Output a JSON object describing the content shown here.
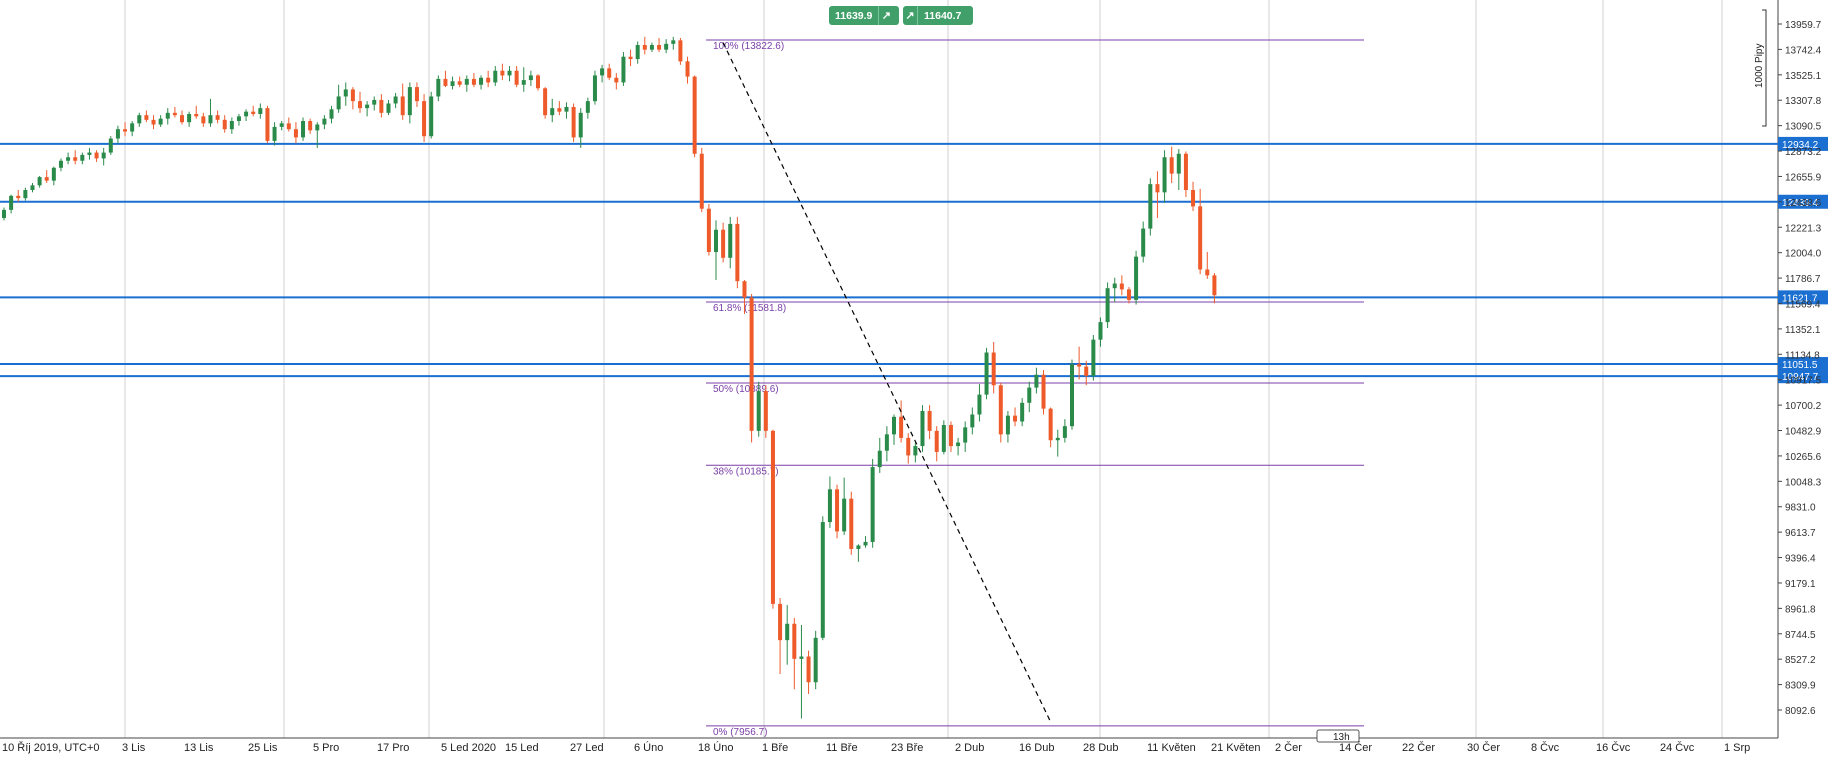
{
  "colors": {
    "bull": "#2a8a4a",
    "bear": "#ee5a2a",
    "grid": "#d0d0d0",
    "sr_line": "#1a6fd1",
    "fib": "#7a3fa8",
    "trade_chip": "#41a06a",
    "trend": "#000000"
  },
  "trade_buttons": {
    "sell_price": "11639.9",
    "sell_icon": "arrow-up-right-icon",
    "buy_price": "11640.7",
    "buy_icon": "arrow-up-right-icon"
  },
  "scale_bracket_label": "1000 Pipy",
  "time_counter": "13h",
  "chart_data": {
    "type": "candlestick",
    "timeframe": "weekly-ish daily",
    "y_axis_ticks": [
      13959.7,
      13742.4,
      13525.1,
      13307.8,
      13090.5,
      12873.2,
      12655.9,
      12438.6,
      12221.3,
      12004.0,
      11786.7,
      11569.4,
      11352.1,
      11134.8,
      10917.5,
      10700.2,
      10482.9,
      10265.6,
      10048.3,
      9831.0,
      9613.7,
      9396.4,
      9179.1,
      8961.8,
      8744.5,
      8527.2,
      8309.9,
      8092.6
    ],
    "x_axis_labels": [
      "10 Říj 2019, UTC+0",
      "3 Lis",
      "13 Lis",
      "25 Lis",
      "5 Pro",
      "17 Pro",
      "5 Led 2020",
      "15 Led",
      "27 Led",
      "6 Úno",
      "18 Úno",
      "1 Bře",
      "11 Bře",
      "23 Bře",
      "2 Dub",
      "16 Dub",
      "28 Dub",
      "11 Květen",
      "21 Květen",
      "2 Čer",
      "14 Čer",
      "22 Čer",
      "30 Čer",
      "8 Čvc",
      "16 Čvc",
      "24 Čvc",
      "1 Srp"
    ],
    "horizontal_lines": [
      {
        "label": "12934.2",
        "value": 12934.2,
        "highlight": true
      },
      {
        "label": "12439.4",
        "value": 12439.4,
        "highlight": true
      },
      {
        "label": "11621.7",
        "value": 11621.7,
        "highlight": true
      },
      {
        "label": "11051.5",
        "value": 11051.5,
        "highlight": true
      },
      {
        "label": "10947.7",
        "value": 10947.7,
        "highlight": true
      }
    ],
    "fibonacci": [
      {
        "label": "100% (13822.6)",
        "value": 13822.6
      },
      {
        "label": "61.8% (11581.8)",
        "value": 11581.8
      },
      {
        "label": "50% (10889.6)",
        "value": 10889.6
      },
      {
        "label": "38% (10185.7)",
        "value": 10185.7
      },
      {
        "label": "0% (7956.7)",
        "value": 7956.7
      }
    ],
    "trendline": {
      "from": {
        "x_index": 101,
        "y": 13800
      },
      "to": {
        "x_index": 147,
        "y": 7990
      }
    },
    "candles": [
      [
        12300,
        12390,
        12280,
        12370
      ],
      [
        12370,
        12500,
        12340,
        12490
      ],
      [
        12490,
        12540,
        12440,
        12470
      ],
      [
        12470,
        12560,
        12450,
        12540
      ],
      [
        12540,
        12600,
        12520,
        12580
      ],
      [
        12580,
        12660,
        12560,
        12650
      ],
      [
        12650,
        12710,
        12600,
        12620
      ],
      [
        12620,
        12740,
        12580,
        12730
      ],
      [
        12730,
        12810,
        12700,
        12790
      ],
      [
        12790,
        12860,
        12760,
        12820
      ],
      [
        12820,
        12880,
        12760,
        12790
      ],
      [
        12790,
        12860,
        12760,
        12840
      ],
      [
        12840,
        12900,
        12800,
        12860
      ],
      [
        12860,
        12880,
        12780,
        12810
      ],
      [
        12810,
        12900,
        12750,
        12860
      ],
      [
        12860,
        13000,
        12840,
        12980
      ],
      [
        12980,
        13090,
        12940,
        13060
      ],
      [
        13060,
        13120,
        13000,
        13040
      ],
      [
        13040,
        13130,
        13000,
        13110
      ],
      [
        13110,
        13200,
        13080,
        13180
      ],
      [
        13180,
        13220,
        13120,
        13140
      ],
      [
        13140,
        13180,
        13060,
        13100
      ],
      [
        13100,
        13180,
        13080,
        13150
      ],
      [
        13150,
        13240,
        13100,
        13200
      ],
      [
        13200,
        13250,
        13160,
        13180
      ],
      [
        13180,
        13220,
        13100,
        13120
      ],
      [
        13120,
        13210,
        13080,
        13190
      ],
      [
        13190,
        13260,
        13150,
        13170
      ],
      [
        13170,
        13200,
        13080,
        13110
      ],
      [
        13110,
        13320,
        13080,
        13180
      ],
      [
        13180,
        13220,
        13110,
        13140
      ],
      [
        13140,
        13180,
        13030,
        13060
      ],
      [
        13060,
        13160,
        13020,
        13130
      ],
      [
        13130,
        13190,
        13090,
        13170
      ],
      [
        13170,
        13230,
        13130,
        13210
      ],
      [
        13210,
        13260,
        13170,
        13190
      ],
      [
        13190,
        13280,
        13150,
        13240
      ],
      [
        13240,
        13260,
        12940,
        12960
      ],
      [
        12960,
        13120,
        12920,
        13080
      ],
      [
        13080,
        13130,
        13050,
        13110
      ],
      [
        13110,
        13160,
        13040,
        13060
      ],
      [
        13060,
        13120,
        12940,
        12990
      ],
      [
        12990,
        13160,
        12960,
        13130
      ],
      [
        13130,
        13150,
        13020,
        13050
      ],
      [
        13050,
        13120,
        12900,
        13100
      ],
      [
        13100,
        13180,
        13060,
        13150
      ],
      [
        13150,
        13260,
        13110,
        13230
      ],
      [
        13230,
        13440,
        13200,
        13340
      ],
      [
        13340,
        13460,
        13260,
        13400
      ],
      [
        13400,
        13420,
        13230,
        13300
      ],
      [
        13300,
        13380,
        13200,
        13240
      ],
      [
        13240,
        13300,
        13170,
        13270
      ],
      [
        13270,
        13340,
        13220,
        13310
      ],
      [
        13310,
        13360,
        13160,
        13200
      ],
      [
        13200,
        13310,
        13180,
        13280
      ],
      [
        13280,
        13370,
        13240,
        13340
      ],
      [
        13340,
        13450,
        13140,
        13180
      ],
      [
        13180,
        13460,
        13110,
        13420
      ],
      [
        13420,
        13460,
        13250,
        13300
      ],
      [
        13300,
        13360,
        12950,
        13000
      ],
      [
        13000,
        13380,
        12980,
        13340
      ],
      [
        13340,
        13520,
        13300,
        13490
      ],
      [
        13490,
        13560,
        13420,
        13430
      ],
      [
        13430,
        13510,
        13400,
        13470
      ],
      [
        13470,
        13510,
        13420,
        13440
      ],
      [
        13440,
        13520,
        13380,
        13490
      ],
      [
        13490,
        13540,
        13420,
        13440
      ],
      [
        13440,
        13520,
        13400,
        13500
      ],
      [
        13500,
        13560,
        13420,
        13460
      ],
      [
        13460,
        13600,
        13430,
        13560
      ],
      [
        13560,
        13620,
        13480,
        13520
      ],
      [
        13520,
        13600,
        13470,
        13560
      ],
      [
        13560,
        13600,
        13420,
        13440
      ],
      [
        13440,
        13590,
        13380,
        13480
      ],
      [
        13480,
        13560,
        13430,
        13520
      ],
      [
        13520,
        13530,
        13390,
        13410
      ],
      [
        13410,
        13420,
        13150,
        13180
      ],
      [
        13180,
        13320,
        13120,
        13240
      ],
      [
        13240,
        13300,
        13180,
        13210
      ],
      [
        13210,
        13290,
        13150,
        13250
      ],
      [
        13250,
        13280,
        12950,
        12990
      ],
      [
        12990,
        13240,
        12900,
        13200
      ],
      [
        13200,
        13330,
        13150,
        13300
      ],
      [
        13300,
        13560,
        13270,
        13520
      ],
      [
        13520,
        13610,
        13460,
        13580
      ],
      [
        13580,
        13620,
        13480,
        13500
      ],
      [
        13500,
        13540,
        13400,
        13460
      ],
      [
        13460,
        13720,
        13430,
        13680
      ],
      [
        13680,
        13740,
        13600,
        13660
      ],
      [
        13660,
        13810,
        13620,
        13780
      ],
      [
        13780,
        13850,
        13700,
        13740
      ],
      [
        13740,
        13800,
        13720,
        13780
      ],
      [
        13780,
        13840,
        13720,
        13740
      ],
      [
        13740,
        13830,
        13710,
        13790
      ],
      [
        13790,
        13850,
        13740,
        13820
      ],
      [
        13820,
        13840,
        13610,
        13640
      ],
      [
        13640,
        13680,
        13450,
        13510
      ],
      [
        13510,
        13520,
        12820,
        12850
      ],
      [
        12850,
        12900,
        12350,
        12380
      ],
      [
        12380,
        12420,
        11980,
        12010
      ],
      [
        12010,
        12280,
        11770,
        12200
      ],
      [
        12200,
        12260,
        11920,
        11960
      ],
      [
        11960,
        12310,
        11870,
        12250
      ],
      [
        12250,
        12310,
        11700,
        11760
      ],
      [
        11760,
        11770,
        11480,
        11620
      ],
      [
        11620,
        11650,
        10380,
        10480
      ],
      [
        10480,
        10900,
        10430,
        10820
      ],
      [
        10820,
        10870,
        10420,
        10480
      ],
      [
        10480,
        10490,
        8960,
        9000
      ],
      [
        9000,
        9050,
        8400,
        8690
      ],
      [
        8690,
        8990,
        8480,
        8830
      ],
      [
        8830,
        8880,
        8270,
        8530
      ],
      [
        8530,
        8820,
        8020,
        8550
      ],
      [
        8550,
        8600,
        8230,
        8330
      ],
      [
        8330,
        8770,
        8270,
        8710
      ],
      [
        8710,
        9750,
        8690,
        9700
      ],
      [
        9700,
        10090,
        9650,
        9980
      ],
      [
        9980,
        10020,
        9560,
        9620
      ],
      [
        9620,
        10080,
        9590,
        9900
      ],
      [
        9900,
        9960,
        9420,
        9470
      ],
      [
        9470,
        9510,
        9360,
        9500
      ],
      [
        9500,
        9580,
        9480,
        9530
      ],
      [
        9530,
        10240,
        9480,
        10170
      ],
      [
        10170,
        10420,
        10120,
        10310
      ],
      [
        10310,
        10520,
        10220,
        10450
      ],
      [
        10450,
        10620,
        10360,
        10600
      ],
      [
        10600,
        10740,
        10380,
        10420
      ],
      [
        10420,
        10460,
        10200,
        10270
      ],
      [
        10270,
        10380,
        10210,
        10350
      ],
      [
        10350,
        10700,
        10300,
        10650
      ],
      [
        10650,
        10700,
        10410,
        10480
      ],
      [
        10480,
        10520,
        10220,
        10300
      ],
      [
        10300,
        10570,
        10280,
        10530
      ],
      [
        10530,
        10560,
        10300,
        10350
      ],
      [
        10350,
        10420,
        10270,
        10380
      ],
      [
        10380,
        10560,
        10300,
        10510
      ],
      [
        10510,
        10680,
        10450,
        10620
      ],
      [
        10620,
        10880,
        10560,
        10790
      ],
      [
        10790,
        11190,
        10750,
        11150
      ],
      [
        11150,
        11240,
        10800,
        10870
      ],
      [
        10870,
        10890,
        10380,
        10450
      ],
      [
        10450,
        10650,
        10380,
        10610
      ],
      [
        10610,
        10680,
        10520,
        10560
      ],
      [
        10560,
        10760,
        10520,
        10720
      ],
      [
        10720,
        10900,
        10640,
        10850
      ],
      [
        10850,
        11020,
        10800,
        10960
      ],
      [
        10960,
        11000,
        10620,
        10670
      ],
      [
        10670,
        10680,
        10340,
        10400
      ],
      [
        10400,
        10490,
        10260,
        10420
      ],
      [
        10420,
        10580,
        10380,
        10520
      ],
      [
        10520,
        11090,
        10490,
        11050
      ],
      [
        11050,
        11200,
        10920,
        11030
      ],
      [
        11030,
        11080,
        10870,
        10950
      ],
      [
        10950,
        11300,
        10910,
        11260
      ],
      [
        11260,
        11450,
        11200,
        11410
      ],
      [
        11410,
        11750,
        11360,
        11700
      ],
      [
        11700,
        11790,
        11580,
        11740
      ],
      [
        11740,
        11810,
        11640,
        11690
      ],
      [
        11690,
        11710,
        11570,
        11600
      ],
      [
        11600,
        12020,
        11560,
        11970
      ],
      [
        11970,
        12270,
        11920,
        12210
      ],
      [
        12210,
        12640,
        12150,
        12590
      ],
      [
        12590,
        12700,
        12300,
        12520
      ],
      [
        12520,
        12880,
        12430,
        12820
      ],
      [
        12820,
        12910,
        12600,
        12680
      ],
      [
        12680,
        12890,
        12540,
        12850
      ],
      [
        12850,
        12870,
        12480,
        12540
      ],
      [
        12540,
        12610,
        12360,
        12400
      ],
      [
        12400,
        12550,
        11820,
        11860
      ],
      [
        11860,
        12010,
        11780,
        11810
      ],
      [
        11810,
        11830,
        11570,
        11640
      ]
    ]
  }
}
